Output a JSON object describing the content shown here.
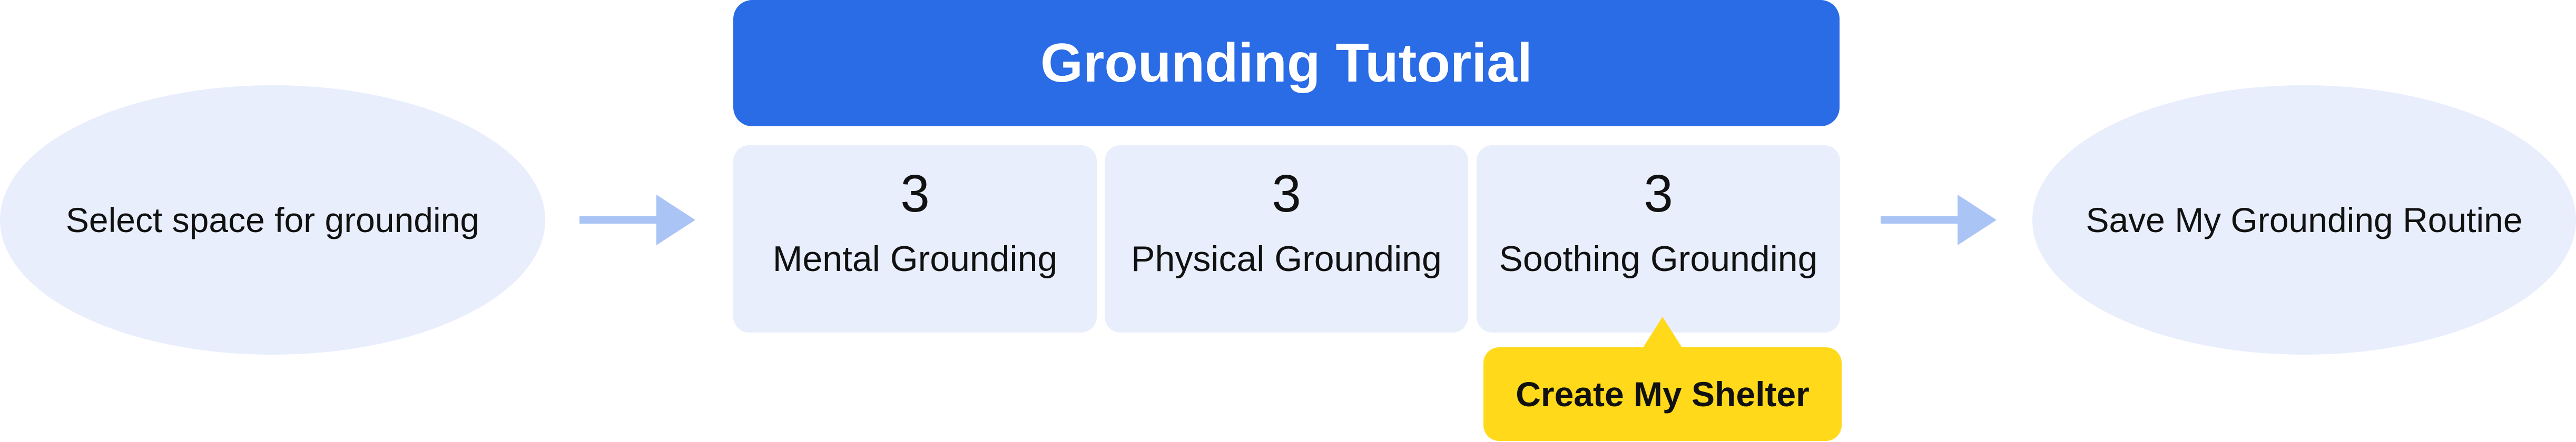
{
  "banner": {
    "title": "Grounding Tutorial"
  },
  "start_node": {
    "label": "Select space for grounding"
  },
  "end_node": {
    "label": "Save My Grounding Routine"
  },
  "cards": [
    {
      "count": "3",
      "label": "Mental Grounding"
    },
    {
      "count": "3",
      "label": "Physical Grounding"
    },
    {
      "count": "3",
      "label": "Soothing Grounding"
    }
  ],
  "callout": {
    "label": "Create My Shelter"
  },
  "colors": {
    "banner_bg": "#2a6be6",
    "node_bg": "#e8eefc",
    "arrow": "#a9c4f5",
    "callout_bg": "#ffd91a"
  },
  "icons": {
    "flow_arrow": "arrow-right-icon"
  }
}
